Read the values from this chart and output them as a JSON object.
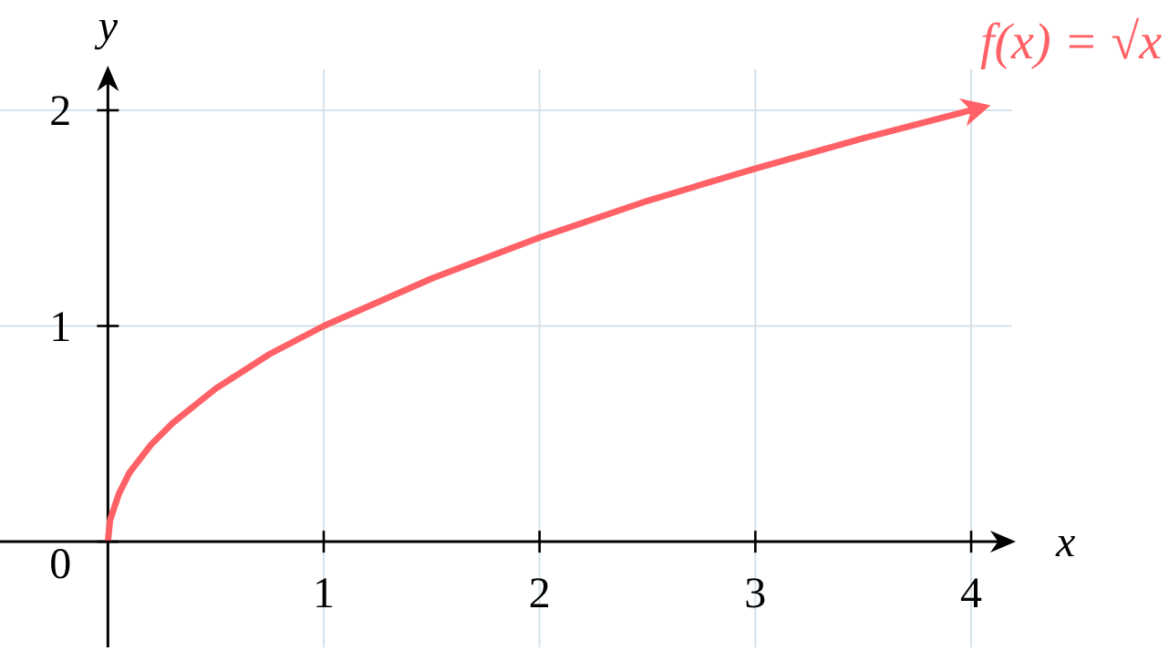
{
  "chart_data": {
    "type": "line",
    "xlabel": "x",
    "ylabel": "y",
    "x": [
      0,
      0.01,
      0.05,
      0.1,
      0.2,
      0.3,
      0.5,
      0.75,
      1,
      1.5,
      2,
      2.5,
      3,
      3.5,
      4
    ],
    "series": [
      {
        "name": "f(x) = √x",
        "color": "#ff6166",
        "values": [
          0,
          0.1,
          0.22,
          0.32,
          0.45,
          0.55,
          0.71,
          0.87,
          1,
          1.22,
          1.41,
          1.58,
          1.73,
          1.87,
          2
        ]
      }
    ],
    "xlim": [
      -0.5,
      4.19
    ],
    "ylim": [
      -0.49,
      2.19
    ],
    "xticks": [
      1,
      2,
      3,
      4
    ],
    "yticks": [
      0,
      1,
      2
    ],
    "grid": true,
    "marker": "none",
    "line_style": "solid"
  }
}
